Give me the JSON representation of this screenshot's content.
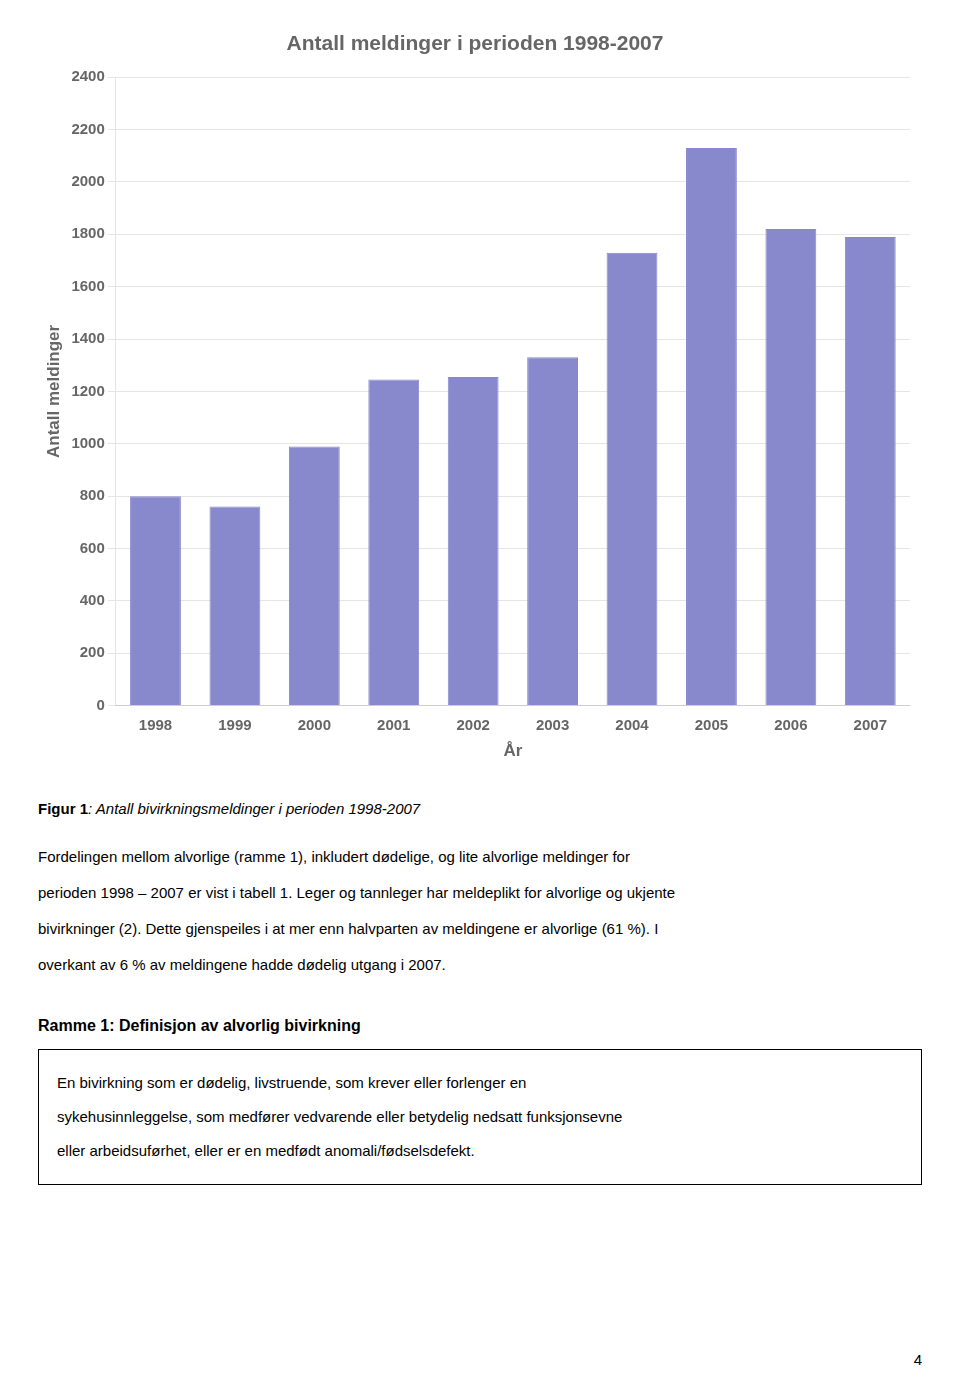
{
  "chart_data": {
    "type": "bar",
    "title": "Antall meldinger i perioden 1998-2007",
    "categories": [
      "1998",
      "1999",
      "2000",
      "2001",
      "2002",
      "2003",
      "2004",
      "2005",
      "2006",
      "2007"
    ],
    "values": [
      800,
      760,
      990,
      1245,
      1255,
      1330,
      1730,
      2130,
      1820,
      1790
    ],
    "color": "#8888cc",
    "xlabel": "År",
    "ylabel": "Antall meldinger",
    "ylim": [
      0,
      2400
    ],
    "yticks": [
      0,
      200,
      400,
      600,
      800,
      1000,
      1200,
      1400,
      1600,
      1800,
      2000,
      2200,
      2400
    ],
    "grid": true,
    "annotations": [
      [
        "Figur 1",
        ": Antall bivirkningsmeldinger i perioden 1998-2007"
      ],
      [
        "Fordelingen mellom alvorlige (ramme 1), inkludert dødelige, og lite alvorlige meldinger for",
        "perioden 1998 – 2007 er vist i tabell 1. Leger og tannleger har meldeplikt for alvorlige og ukjente",
        "bivirkninger (2). Dette gjenspeiles i at mer enn halvparten av meldingene er alvorlige (61 %). I",
        "overkant av 6 % av meldingene hadde dødelig utgang i 2007."
      ],
      [
        "Ramme 1: Definisjon av alvorlig bivirkning"
      ],
      [
        "En bivirkning som er dødelig, livstruende, som krever eller forlenger en",
        "sykehusinnleggelse, som medfører vedvarende eller betydelig nedsatt funksjonsevne",
        "eller arbeidsuførhet, eller er en medfødt anomali/fødselsdefekt."
      ],
      [
        "4"
      ]
    ]
  }
}
